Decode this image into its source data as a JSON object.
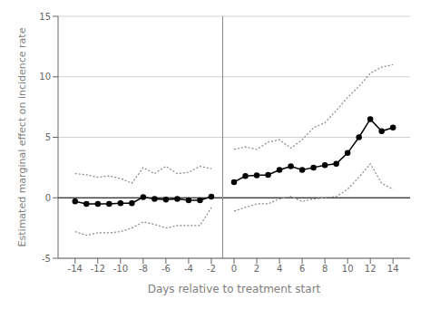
{
  "chart_data": {
    "type": "line",
    "x_label": "Days relative to treatment start",
    "y_label": "Estimated marginal effect on incidence rate",
    "x": [
      -14,
      -13,
      -12,
      -11,
      -10,
      -9,
      -8,
      -7,
      -6,
      -5,
      -4,
      -3,
      -2,
      -1,
      0,
      1,
      2,
      3,
      4,
      5,
      6,
      7,
      8,
      9,
      10,
      11,
      12,
      13,
      14
    ],
    "series": [
      {
        "color": "#888888",
        "line_style": "dotted",
        "values": [
          2.0,
          1.9,
          1.7,
          1.8,
          1.6,
          1.2,
          2.5,
          2.0,
          2.6,
          2.0,
          2.1,
          2.6,
          2.4,
          null,
          4.0,
          4.2,
          4.0,
          4.6,
          4.8,
          4.1,
          4.8,
          5.8,
          6.2,
          7.2,
          8.3,
          9.2,
          10.3,
          10.8,
          11.0
        ]
      },
      {
        "color": "#888888",
        "line_style": "dotted",
        "values": [
          -2.8,
          -3.1,
          -2.9,
          -2.9,
          -2.8,
          -2.5,
          -2.0,
          -2.2,
          -2.5,
          -2.3,
          -2.3,
          -2.3,
          -0.8,
          null,
          -1.1,
          -0.8,
          -0.5,
          -0.5,
          -0.1,
          0.1,
          -0.3,
          -0.1,
          0.0,
          0.1,
          0.7,
          1.7,
          2.8,
          1.2,
          0.7
        ]
      },
      {
        "color": "#000000",
        "line_style": "solid",
        "marker": "circle",
        "values": [
          -0.3,
          -0.5,
          -0.5,
          -0.5,
          -0.45,
          -0.45,
          0.05,
          -0.1,
          -0.15,
          -0.1,
          -0.2,
          -0.2,
          0.1,
          null,
          1.3,
          1.8,
          1.85,
          1.9,
          2.3,
          2.6,
          2.3,
          2.5,
          2.7,
          2.8,
          3.7,
          5.0,
          6.5,
          5.5,
          5.8
        ]
      }
    ],
    "xlim": [
      -15.5,
      15.5
    ],
    "xticks": [
      -14,
      -12,
      -10,
      -8,
      -6,
      -4,
      -2,
      0,
      2,
      4,
      6,
      8,
      10,
      12,
      14
    ],
    "ylim": [
      -5,
      15
    ],
    "yticks": [
      -5,
      0,
      5,
      10,
      15
    ],
    "grid": "y",
    "reference_lines": [
      {
        "y": 0,
        "color": "#000000"
      },
      {
        "x": -1,
        "color": "#888888"
      }
    ]
  }
}
